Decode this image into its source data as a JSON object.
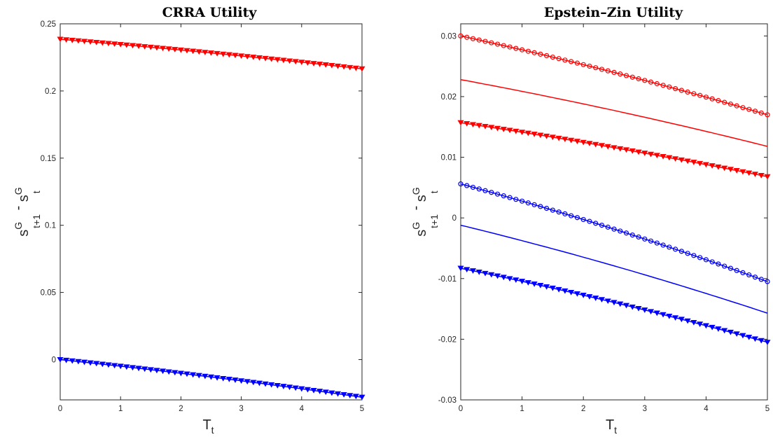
{
  "figure": {
    "colors": {
      "red": "#ff0000",
      "blue": "#0000ff",
      "axis": "#262626"
    }
  },
  "chart_data": [
    {
      "type": "line",
      "title": "CRRA Utility",
      "xlabel": {
        "main": "T",
        "sub": "t"
      },
      "ylabel": {
        "base": "s",
        "sup1": "G",
        "sub1": "t+1",
        "minus": " - ",
        "sup2": "G",
        "sub2": "t"
      },
      "xlim": [
        0,
        5
      ],
      "ylim": [
        -0.03,
        0.25
      ],
      "xticks": [
        0,
        1,
        2,
        3,
        4,
        5
      ],
      "xtick_labels": [
        "0",
        "1",
        "2",
        "3",
        "4",
        "5"
      ],
      "yticks": [
        0,
        0.05,
        0.1,
        0.15,
        0.2,
        0.25
      ],
      "ytick_labels": [
        "0",
        "0.05",
        "0.1",
        "0.15",
        "0.2",
        "0.25"
      ],
      "grid": false,
      "legend": "none",
      "series": [
        {
          "color": "#ff0000",
          "marker": "triangle-down",
          "x0": 0,
          "x1": 5,
          "y0": 0.2385,
          "y1": 0.2165
        },
        {
          "color": "#0000ff",
          "marker": "triangle-down",
          "x0": 0,
          "x1": 5,
          "y0": 0.0,
          "y1": -0.028
        }
      ]
    },
    {
      "type": "line",
      "title": "Epstein–Zin Utility",
      "xlabel": {
        "main": "T",
        "sub": "t"
      },
      "ylabel": {
        "base": "s",
        "sup1": "G",
        "sub1": "t+1",
        "minus": " - ",
        "sup2": "G",
        "sub2": "t"
      },
      "xlim": [
        0,
        5
      ],
      "ylim": [
        -0.03,
        0.032
      ],
      "xticks": [
        0,
        1,
        2,
        3,
        4,
        5
      ],
      "xtick_labels": [
        "0",
        "1",
        "2",
        "3",
        "4",
        "5"
      ],
      "yticks": [
        -0.03,
        -0.02,
        -0.01,
        0,
        0.01,
        0.02,
        0.03
      ],
      "ytick_labels": [
        "-0.03",
        "-0.02",
        "-0.01",
        "0",
        "0.01",
        "0.02",
        "0.03"
      ],
      "grid": false,
      "legend": "none",
      "series": [
        {
          "color": "#ff0000",
          "marker": "circle",
          "x0": 0,
          "x1": 5,
          "y0": 0.03,
          "y1": 0.017
        },
        {
          "color": "#ff0000",
          "marker": "none",
          "x0": 0,
          "x1": 5,
          "y0": 0.0228,
          "y1": 0.0118
        },
        {
          "color": "#ff0000",
          "marker": "triangle-down",
          "x0": 0,
          "x1": 5,
          "y0": 0.0157,
          "y1": 0.0068
        },
        {
          "color": "#0000ff",
          "marker": "circle",
          "x0": 0,
          "x1": 5,
          "y0": 0.0056,
          "y1": -0.0105
        },
        {
          "color": "#0000ff",
          "marker": "none",
          "x0": 0,
          "x1": 5,
          "y0": -0.0012,
          "y1": -0.0157
        },
        {
          "color": "#0000ff",
          "marker": "triangle-down",
          "x0": 0,
          "x1": 5,
          "y0": -0.0083,
          "y1": -0.0205
        }
      ]
    }
  ]
}
